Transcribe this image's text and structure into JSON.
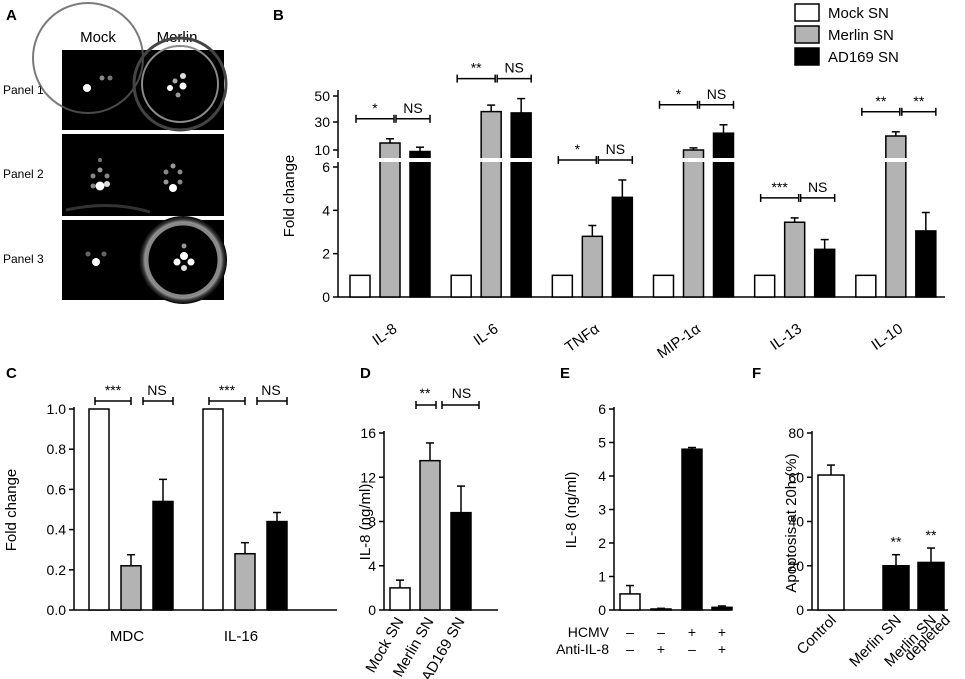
{
  "figure": {
    "panel_labels": [
      "A",
      "B",
      "C",
      "D",
      "E",
      "F"
    ],
    "colors": {
      "mock": "#ffffff",
      "merlin": "#b3b3b3",
      "ad169": "#000000",
      "axis": "#000000",
      "photo_bg": "#000000"
    }
  },
  "panel_a": {
    "label": "A",
    "col_labels": [
      "Mock",
      "Merlin"
    ],
    "row_labels": [
      "Panel 1",
      "Panel 2",
      "Panel 3"
    ]
  },
  "legend": {
    "placement": "top-right",
    "entries": [
      {
        "label": "Mock SN",
        "color": "#ffffff"
      },
      {
        "label": "Merlin SN",
        "color": "#b3b3b3"
      },
      {
        "label": "AD169 SN",
        "color": "#000000"
      }
    ]
  },
  "chart_data": [
    {
      "panel": "B",
      "type": "bar",
      "ylabel": "Fold change",
      "broken_axis": true,
      "ylim_lower": [
        0,
        6
      ],
      "yticks_lower": [
        "0",
        "2",
        "4",
        "6"
      ],
      "yticks_upper": [
        "10",
        "30",
        "50"
      ],
      "categories": [
        "IL-8",
        "IL-6",
        "TNFα",
        "MIP-1α",
        "IL-13",
        "IL-10"
      ],
      "series": [
        {
          "name": "Mock SN",
          "values": [
            1,
            1,
            1,
            1,
            1,
            1
          ],
          "errors": [
            0,
            0,
            0,
            0,
            0,
            0
          ]
        },
        {
          "name": "Merlin SN",
          "values": [
            15,
            38,
            2.8,
            10,
            3.45,
            20
          ],
          "errors": [
            3,
            5,
            0.5,
            1.5,
            0.2,
            3
          ]
        },
        {
          "name": "AD169 SN",
          "values": [
            9,
            37,
            4.6,
            22,
            2.2,
            3.05
          ],
          "errors": [
            3,
            11,
            0.8,
            6,
            0.45,
            0.85
          ]
        }
      ],
      "annotations": [
        {
          "category": "IL-8",
          "left": "*",
          "right": "NS"
        },
        {
          "category": "IL-6",
          "left": "**",
          "right": "NS"
        },
        {
          "category": "TNFα",
          "left": "*",
          "right": "NS"
        },
        {
          "category": "MIP-1α",
          "left": "*",
          "right": "NS"
        },
        {
          "category": "IL-13",
          "left": "***",
          "right": "NS"
        },
        {
          "category": "IL-10",
          "left": "**",
          "right": "**"
        }
      ]
    },
    {
      "panel": "C",
      "type": "bar",
      "ylabel": "Fold change",
      "ylim": [
        0,
        1.0
      ],
      "yticks": [
        "0.0",
        "0.2",
        "0.4",
        "0.6",
        "0.8",
        "1.0"
      ],
      "categories": [
        "MDC",
        "IL-16"
      ],
      "series": [
        {
          "name": "Mock SN",
          "values": [
            1.0,
            1.0
          ],
          "errors": [
            0,
            0
          ]
        },
        {
          "name": "Merlin SN",
          "values": [
            0.22,
            0.28
          ],
          "errors": [
            0.055,
            0.055
          ]
        },
        {
          "name": "AD169 SN",
          "values": [
            0.54,
            0.44
          ],
          "errors": [
            0.11,
            0.045
          ]
        }
      ],
      "annotations": [
        {
          "category": "MDC",
          "left": "***",
          "right": "NS"
        },
        {
          "category": "IL-16",
          "left": "***",
          "right": "NS"
        }
      ]
    },
    {
      "panel": "D",
      "type": "bar",
      "ylabel": "IL-8 (ng/ml)",
      "ylim": [
        0,
        16
      ],
      "yticks": [
        "0",
        "4",
        "8",
        "12",
        "16"
      ],
      "categories": [
        "Mock SN",
        "Merlin SN",
        "AD169 SN"
      ],
      "values": [
        2.0,
        13.5,
        8.8
      ],
      "errors": [
        0.7,
        1.6,
        2.4
      ],
      "colors": [
        "#ffffff",
        "#b3b3b3",
        "#000000"
      ],
      "annotations": [
        {
          "left": "**",
          "right": "NS"
        }
      ]
    },
    {
      "panel": "E",
      "type": "bar",
      "ylabel": "IL-8 (ng/ml)",
      "ylim": [
        0,
        6
      ],
      "yticks": [
        "0",
        "1",
        "2",
        "3",
        "4",
        "5",
        "6"
      ],
      "values": [
        0.48,
        0.03,
        4.8,
        0.08
      ],
      "errors": [
        0.25,
        0.02,
        0.05,
        0.04
      ],
      "colors": [
        "#ffffff",
        "#ffffff",
        "#000000",
        "#000000"
      ],
      "conditions": [
        {
          "label": "HCMV",
          "signs": [
            "–",
            "–",
            "+",
            "+"
          ]
        },
        {
          "label": "Anti-IL-8",
          "signs": [
            "–",
            "+",
            "–",
            "+"
          ]
        }
      ]
    },
    {
      "panel": "F",
      "type": "bar",
      "ylabel": "Apoptosis at 20h (%)",
      "ylim": [
        0,
        80
      ],
      "yticks": [
        "0",
        "20",
        "40",
        "60",
        "80"
      ],
      "categories": [
        "Control",
        "Merlin SN",
        "Merlin SN depleted"
      ],
      "category_lines": [
        [
          "Control"
        ],
        [
          "Merlin SN"
        ],
        [
          "Merlin SN",
          "depleted"
        ]
      ],
      "values": [
        61,
        20,
        21.5
      ],
      "errors": [
        4.5,
        5,
        6.5
      ],
      "colors": [
        "#ffffff",
        "#000000",
        "#000000"
      ],
      "annotations": [
        "",
        "**",
        "**"
      ]
    }
  ]
}
